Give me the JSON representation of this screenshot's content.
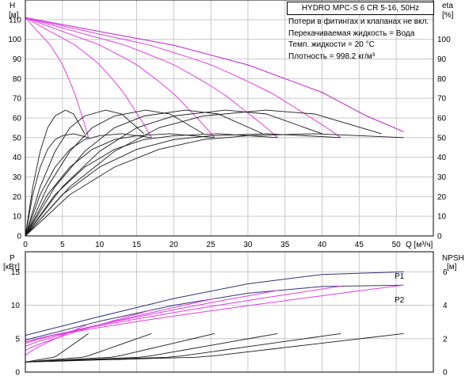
{
  "chart_data": [
    {
      "type": "line",
      "title": "HYDRO MPC-S 6 CR 5-16, 50Hz",
      "notes": [
        "Потери в фитингах и клапанах не вкл.",
        "Перекачиваемая жидкость = Вода",
        "Темп. жидкости = 20 °C",
        "Плотность = 998.2 кг/м³"
      ],
      "xlabel": "Q [м³/ч]",
      "ylabel": "H",
      "ylabel_unit": "[м]",
      "y2label": "eta",
      "y2label_unit": "[%]",
      "xlim": [
        0,
        55
      ],
      "ylim": [
        0,
        120
      ],
      "y2lim": [
        0,
        120
      ],
      "xticks": [
        0,
        5,
        10,
        15,
        20,
        25,
        30,
        35,
        40,
        45,
        50
      ],
      "yticks": [
        0,
        10,
        20,
        30,
        40,
        50,
        60,
        70,
        80,
        90,
        100,
        110
      ],
      "y2ticks": [
        0,
        10,
        20,
        30,
        40,
        50,
        60,
        70,
        80,
        90,
        100
      ],
      "grid": true,
      "pump_count": 6,
      "shutoff_head": 111,
      "max_flow_per_pump": 8.5,
      "head_curves_max": [
        {
          "x": 0,
          "y": 111
        },
        {
          "x": 10,
          "y": 104
        },
        {
          "x": 20,
          "y": 97
        },
        {
          "x": 30,
          "y": 87
        },
        {
          "x": 40,
          "y": 73
        },
        {
          "x": 46,
          "y": 61
        },
        {
          "x": 51,
          "y": 53
        }
      ],
      "eta_curve_pump": [
        {
          "x": 0,
          "y": 0
        },
        {
          "x": 1,
          "y": 25
        },
        {
          "x": 2,
          "y": 43
        },
        {
          "x": 3,
          "y": 55
        },
        {
          "x": 4,
          "y": 61
        },
        {
          "x": 5.4,
          "y": 64
        },
        {
          "x": 6.5,
          "y": 62
        },
        {
          "x": 8,
          "y": 52
        }
      ],
      "eta_curve_speed_variant": [
        {
          "x": 0,
          "y": 0
        },
        {
          "x": 1,
          "y": 21
        },
        {
          "x": 2,
          "y": 35
        },
        {
          "x": 3,
          "y": 44
        },
        {
          "x": 4,
          "y": 49
        },
        {
          "x": 5,
          "y": 51
        },
        {
          "x": 6.5,
          "y": 52
        },
        {
          "x": 8.5,
          "y": 50
        }
      ]
    },
    {
      "type": "line",
      "xlim": [
        0,
        55
      ],
      "ylabel": "P",
      "ylabel_unit": "[кВт]",
      "y2label": "NPSH",
      "y2label_unit": "[м]",
      "ylim": [
        0,
        18
      ],
      "y2lim": [
        0,
        7.2
      ],
      "yticks": [
        0,
        5,
        10,
        15
      ],
      "y2ticks": [
        0,
        2,
        4,
        6
      ],
      "grid": true,
      "series": [
        {
          "name": "P1",
          "values": [
            {
              "x": 0,
              "y": 5.5
            },
            {
              "x": 10,
              "y": 8.3
            },
            {
              "x": 20,
              "y": 11
            },
            {
              "x": 30,
              "y": 13.2
            },
            {
              "x": 40,
              "y": 14.6
            },
            {
              "x": 51,
              "y": 15
            }
          ]
        },
        {
          "name": "P2",
          "values": [
            {
              "x": 0,
              "y": 4.8
            },
            {
              "x": 10,
              "y": 7.6
            },
            {
              "x": 20,
              "y": 10
            },
            {
              "x": 30,
              "y": 11.8
            },
            {
              "x": 40,
              "y": 12.8
            },
            {
              "x": 51,
              "y": 13
            }
          ]
        }
      ],
      "npsh_curve_pump": [
        {
          "x": 0,
          "y": 0.6
        },
        {
          "x": 4,
          "y": 0.9
        },
        {
          "x": 8.5,
          "y": 2.3
        }
      ]
    }
  ]
}
